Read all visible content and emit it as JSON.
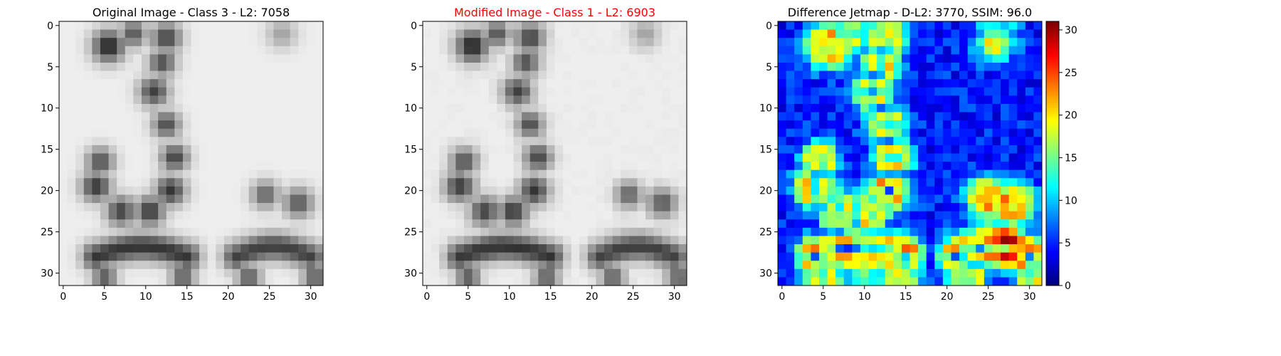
{
  "chart_data": [
    {
      "type": "heatmap",
      "title": "Original Image - Class 3 - L2: 7058",
      "title_color": "#000000",
      "colormap": "gray",
      "xlim": [
        0,
        31
      ],
      "ylim": [
        0,
        31
      ],
      "x_ticks": [
        0,
        5,
        10,
        15,
        20,
        25,
        30
      ],
      "y_ticks": [
        0,
        5,
        10,
        15,
        20,
        25,
        30
      ]
    },
    {
      "type": "heatmap",
      "title": "Modified Image - Class 1 - L2: 6903",
      "title_color": "#ff0000",
      "colormap": "gray",
      "xlim": [
        0,
        31
      ],
      "ylim": [
        0,
        31
      ],
      "x_ticks": [
        0,
        5,
        10,
        15,
        20,
        25,
        30
      ],
      "y_ticks": [
        0,
        5,
        10,
        15,
        20,
        25,
        30
      ]
    },
    {
      "type": "heatmap",
      "title": "Difference Jetmap - D-L2: 3770, SSIM: 96.0",
      "title_color": "#000000",
      "colormap": "jet",
      "xlim": [
        0,
        31
      ],
      "ylim": [
        0,
        31
      ],
      "x_ticks": [
        0,
        5,
        10,
        15,
        20,
        25,
        30
      ],
      "y_ticks": [
        0,
        5,
        10,
        15,
        20,
        25,
        30
      ],
      "colorbar": {
        "range": [
          0,
          31
        ],
        "ticks": [
          0,
          5,
          10,
          15,
          20,
          25,
          30
        ]
      }
    }
  ]
}
